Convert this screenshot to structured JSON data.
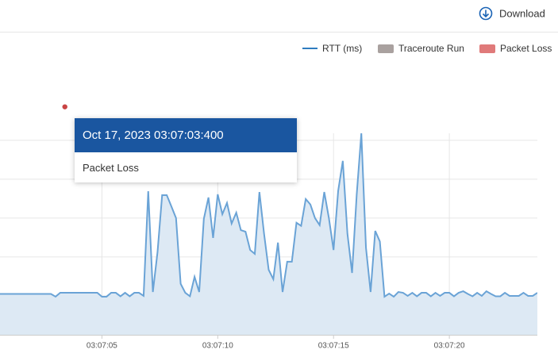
{
  "toolbar": {
    "download": "Download"
  },
  "tooltip": {
    "title": "Oct 17, 2023 03:07:03:400",
    "text": "Packet Loss"
  },
  "chart_data": {
    "type": "line",
    "x": [
      0.6,
      0.8,
      1,
      1.2,
      1.4,
      1.6,
      1.8,
      2,
      2.2,
      2.4,
      2.6,
      2.8,
      3,
      3.2,
      3.4,
      3.6,
      3.8,
      4,
      4.2,
      4.4,
      4.6,
      4.8,
      5,
      5.2,
      5.4,
      5.6,
      5.8,
      6,
      6.2,
      6.4,
      6.6,
      6.8,
      7,
      7.2,
      7.4,
      7.6,
      7.8,
      8,
      8.2,
      8.4,
      8.6,
      8.8,
      9,
      9.2,
      9.4,
      9.6,
      9.8,
      10,
      10.2,
      10.4,
      10.6,
      10.8,
      11,
      11.2,
      11.4,
      11.6,
      11.8,
      12,
      12.2,
      12.4,
      12.6,
      12.8,
      13,
      13.2,
      13.4,
      13.6,
      13.8,
      14,
      14.2,
      14.4,
      14.6,
      14.8,
      15,
      15.2,
      15.4,
      15.6,
      15.8,
      16,
      16.2,
      16.4,
      16.6,
      16.8,
      17,
      17.2,
      17.4,
      17.6,
      17.8,
      18,
      18.2,
      18.4,
      18.6,
      18.8,
      19,
      19.2,
      19.4,
      19.6,
      19.8,
      20,
      20.2,
      20.4,
      20.6,
      20.8,
      21,
      21.2,
      21.4,
      21.6,
      21.8,
      22,
      22.2,
      22.4,
      22.6,
      22.8,
      23,
      23.2,
      23.4,
      23.6,
      23.8
    ],
    "series": [
      {
        "name": "RTT (ms)",
        "color": "#2f7cc0",
        "line_color": "#6aa3d6",
        "fill": "#dde9f4",
        "values": [
          1.05,
          1.05,
          1.05,
          1.05,
          1.05,
          1.05,
          1.05,
          1.05,
          1.05,
          1.05,
          1.05,
          1.05,
          0.98,
          1.08,
          1.08,
          1.08,
          1.08,
          1.08,
          1.08,
          1.08,
          1.08,
          1.08,
          0.98,
          0.98,
          1.08,
          1.08,
          0.99,
          1.08,
          0.99,
          1.08,
          1.08,
          1.0,
          3.69,
          1.1,
          2.12,
          3.59,
          3.59,
          3.3,
          3.0,
          1.31,
          1.08,
          0.99,
          1.49,
          1.1,
          2.98,
          3.53,
          2.49,
          3.61,
          3.1,
          3.39,
          2.86,
          3.14,
          2.69,
          2.65,
          2.18,
          2.08,
          3.67,
          2.6,
          1.67,
          1.43,
          2.37,
          1.1,
          1.88,
          1.88,
          2.88,
          2.8,
          3.49,
          3.35,
          3.0,
          2.82,
          3.67,
          3.0,
          2.18,
          3.7,
          4.47,
          2.6,
          1.59,
          3.6,
          5.18,
          2.24,
          1.1,
          2.67,
          2.4,
          0.98,
          1.06,
          0.98,
          1.1,
          1.08,
          1.0,
          1.08,
          0.99,
          1.08,
          1.08,
          0.99,
          1.08,
          1.0,
          1.08,
          1.08,
          0.99,
          1.08,
          1.12,
          1.05,
          0.99,
          1.08,
          1.0,
          1.12,
          1.05,
          0.99,
          0.99,
          1.08,
          1.0,
          1.0,
          1.0,
          1.08,
          1.0,
          1.0,
          1.08
        ]
      }
    ],
    "events": [
      {
        "name": "Traceroute Run",
        "color": "#a9a19f"
      },
      {
        "name": "Packet Loss",
        "color": "#e07a7a",
        "dot_color": "#c94444",
        "x": [
          3.4
        ],
        "values": [
          5.86
        ]
      }
    ],
    "xlim": [
      0.6,
      23.8
    ],
    "ylim": [
      0,
      6.2
    ],
    "xticks": [
      {
        "value": 5,
        "label": "03:07:05"
      },
      {
        "value": 10,
        "label": "03:07:10"
      },
      {
        "value": 15,
        "label": "03:07:15"
      },
      {
        "value": 20,
        "label": "03:07:20"
      }
    ],
    "ygrid": [
      1,
      2,
      3,
      4,
      5
    ],
    "grid": true
  }
}
